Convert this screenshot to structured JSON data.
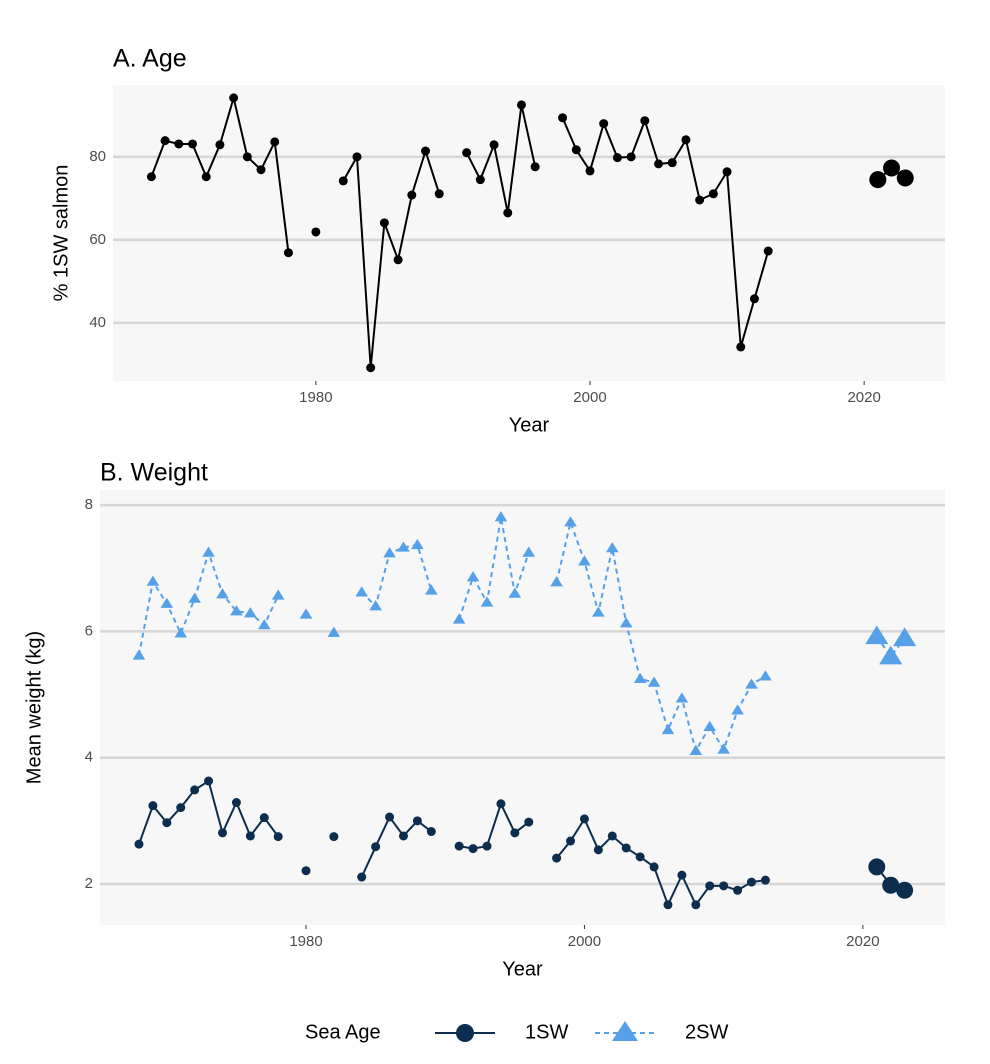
{
  "chart_data": [
    {
      "type": "line",
      "title": "A. Age",
      "x_label": "Year",
      "y_label": "% 1SW salmon",
      "color": "#000000",
      "large_points_from": 2021,
      "x": [
        1968,
        1969,
        1970,
        1971,
        1972,
        1973,
        1974,
        1975,
        1976,
        1977,
        1978,
        1979,
        1980,
        1981,
        1982,
        1983,
        1984,
        1985,
        1986,
        1987,
        1988,
        1989,
        1990,
        1991,
        1992,
        1993,
        1994,
        1995,
        1996,
        1997,
        1998,
        1999,
        2000,
        2001,
        2002,
        2003,
        2004,
        2005,
        2006,
        2007,
        2008,
        2009,
        2010,
        2011,
        2012,
        2013,
        2014,
        2015,
        2016,
        2017,
        2018,
        2019,
        2020,
        2021,
        2022,
        2023
      ],
      "values": [
        75.2,
        83.9,
        83.1,
        83.1,
        75.2,
        82.9,
        94.2,
        80,
        76.9,
        83.6,
        56.9,
        null,
        61.9,
        null,
        74.2,
        80,
        29.2,
        64.1,
        55.2,
        70.8,
        81.4,
        71.1,
        null,
        81,
        74.5,
        82.9,
        66.5,
        92.5,
        77.6,
        null,
        89.4,
        81.7,
        76.6,
        88,
        79.8,
        80,
        88.7,
        78.3,
        78.6,
        84.1,
        69.6,
        71.1,
        76.4,
        34.2,
        45.8,
        57.3,
        null,
        null,
        null,
        null,
        null,
        null,
        null,
        74.5,
        77.3,
        74.9
      ],
      "xlim": [
        1965.2,
        2025.9
      ],
      "xticks": [
        1980,
        2000,
        2020
      ],
      "ylim": [
        26,
        97.3
      ],
      "yticks": [
        40,
        60,
        80
      ],
      "grid": true
    },
    {
      "type": "line",
      "title": "B. Weight",
      "x_label": "Year",
      "y_label": "Mean weight (kg)",
      "legend": "bottom",
      "legend_title": "Sea Age",
      "large_points_from": 2021,
      "x": [
        1968,
        1969,
        1970,
        1971,
        1972,
        1973,
        1974,
        1975,
        1976,
        1977,
        1978,
        1979,
        1980,
        1981,
        1982,
        1983,
        1984,
        1985,
        1986,
        1987,
        1988,
        1989,
        1990,
        1991,
        1992,
        1993,
        1994,
        1995,
        1996,
        1997,
        1998,
        1999,
        2000,
        2001,
        2002,
        2003,
        2004,
        2005,
        2006,
        2007,
        2008,
        2009,
        2010,
        2011,
        2012,
        2013,
        2014,
        2015,
        2016,
        2017,
        2018,
        2019,
        2020,
        2021,
        2022,
        2023
      ],
      "series": [
        {
          "name": "1SW",
          "color": "#0c2d4d",
          "marker": "circle",
          "dashed": false,
          "values": [
            2.63,
            3.24,
            2.97,
            3.21,
            3.49,
            3.63,
            2.81,
            3.29,
            2.76,
            3.05,
            2.75,
            null,
            2.21,
            null,
            2.75,
            null,
            2.11,
            2.59,
            3.06,
            2.76,
            3.0,
            2.83,
            null,
            2.6,
            2.56,
            2.6,
            3.27,
            2.81,
            2.98,
            null,
            2.41,
            2.68,
            3.03,
            2.54,
            2.76,
            2.57,
            2.43,
            2.27,
            1.67,
            2.14,
            1.67,
            1.97,
            1.97,
            1.9,
            2.03,
            2.06,
            null,
            null,
            null,
            null,
            null,
            null,
            null,
            2.27,
            1.98,
            1.9
          ]
        },
        {
          "name": "2SW",
          "color": "#56a0e8",
          "marker": "triangle",
          "dashed": true,
          "values": [
            5.62,
            6.79,
            6.44,
            5.97,
            6.52,
            7.25,
            6.59,
            6.32,
            6.29,
            6.1,
            6.57,
            null,
            6.27,
            null,
            5.98,
            null,
            6.62,
            6.4,
            7.24,
            7.33,
            7.37,
            6.65,
            null,
            6.19,
            6.86,
            6.46,
            7.81,
            6.6,
            7.25,
            null,
            6.78,
            7.73,
            7.11,
            6.3,
            7.32,
            6.13,
            5.25,
            5.19,
            4.44,
            4.94,
            4.11,
            4.49,
            4.13,
            4.75,
            5.16,
            5.29,
            null,
            null,
            null,
            null,
            null,
            null,
            null,
            5.92,
            5.6,
            5.89
          ]
        }
      ],
      "xlim": [
        1965.2,
        2025.9
      ],
      "xticks": [
        1980,
        2000,
        2020
      ],
      "ylim": [
        1.35,
        8.24
      ],
      "yticks": [
        2,
        4,
        6,
        8
      ],
      "grid": true
    }
  ]
}
